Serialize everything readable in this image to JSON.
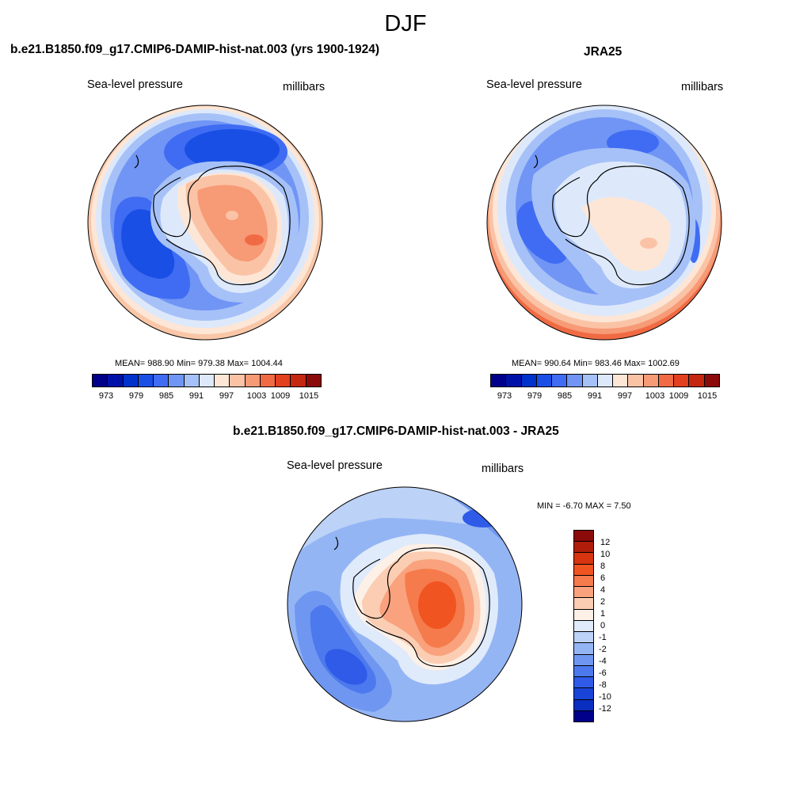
{
  "main_title": "DJF",
  "panels": [
    {
      "title": "b.e21.B1850.f09_g17.CMIP6-DAMIP-hist-nat.003 (yrs 1900-1924)",
      "left_label": "Sea-level pressure",
      "right_label": "millibars",
      "stats": "MEAN= 988.90  Min= 979.38  Max= 1004.44",
      "colorbar_ticks": [
        "973",
        "979",
        "985",
        "991",
        "997",
        "1003",
        "1009",
        "1015"
      ]
    },
    {
      "title": "JRA25",
      "left_label": "Sea-level pressure",
      "right_label": "millibars",
      "stats": "MEAN= 990.64  Min= 983.46  Max= 1002.69",
      "colorbar_ticks": [
        "973",
        "979",
        "985",
        "991",
        "997",
        "1003",
        "1009",
        "1015"
      ]
    },
    {
      "title": "b.e21.B1850.f09_g17.CMIP6-DAMIP-hist-nat.003 - JRA25",
      "left_label": "Sea-level pressure",
      "right_label": "millibars",
      "stats": "MIN =  -6.70 MAX =   7.50",
      "colorbar_ticks": [
        "12",
        "10",
        "8",
        "6",
        "4",
        "2",
        "1",
        "0",
        "-1",
        "-2",
        "-4",
        "-6",
        "-8",
        "-10",
        "-12"
      ]
    }
  ],
  "colors": {
    "abs_palette": [
      "#00008b",
      "#0011a8",
      "#0033cc",
      "#1a4fe6",
      "#3f6cf2",
      "#7095f5",
      "#a6c1f7",
      "#dde9fb",
      "#fde6d6",
      "#fbc3a6",
      "#f79a76",
      "#f06a43",
      "#e2401e",
      "#c42810",
      "#8b0a0a"
    ],
    "diff_palette": [
      "#8b0a0a",
      "#b01e0a",
      "#d73410",
      "#f05421",
      "#f57a4c",
      "#f9a27d",
      "#fbcdb3",
      "#fdf0e7",
      "#dfeafb",
      "#bcd2f7",
      "#94b5f4",
      "#6f97f1",
      "#4d79ee",
      "#2f5be8",
      "#1a43d8",
      "#0a2ec0",
      "#00008b"
    ],
    "land_outline": "#000000"
  }
}
